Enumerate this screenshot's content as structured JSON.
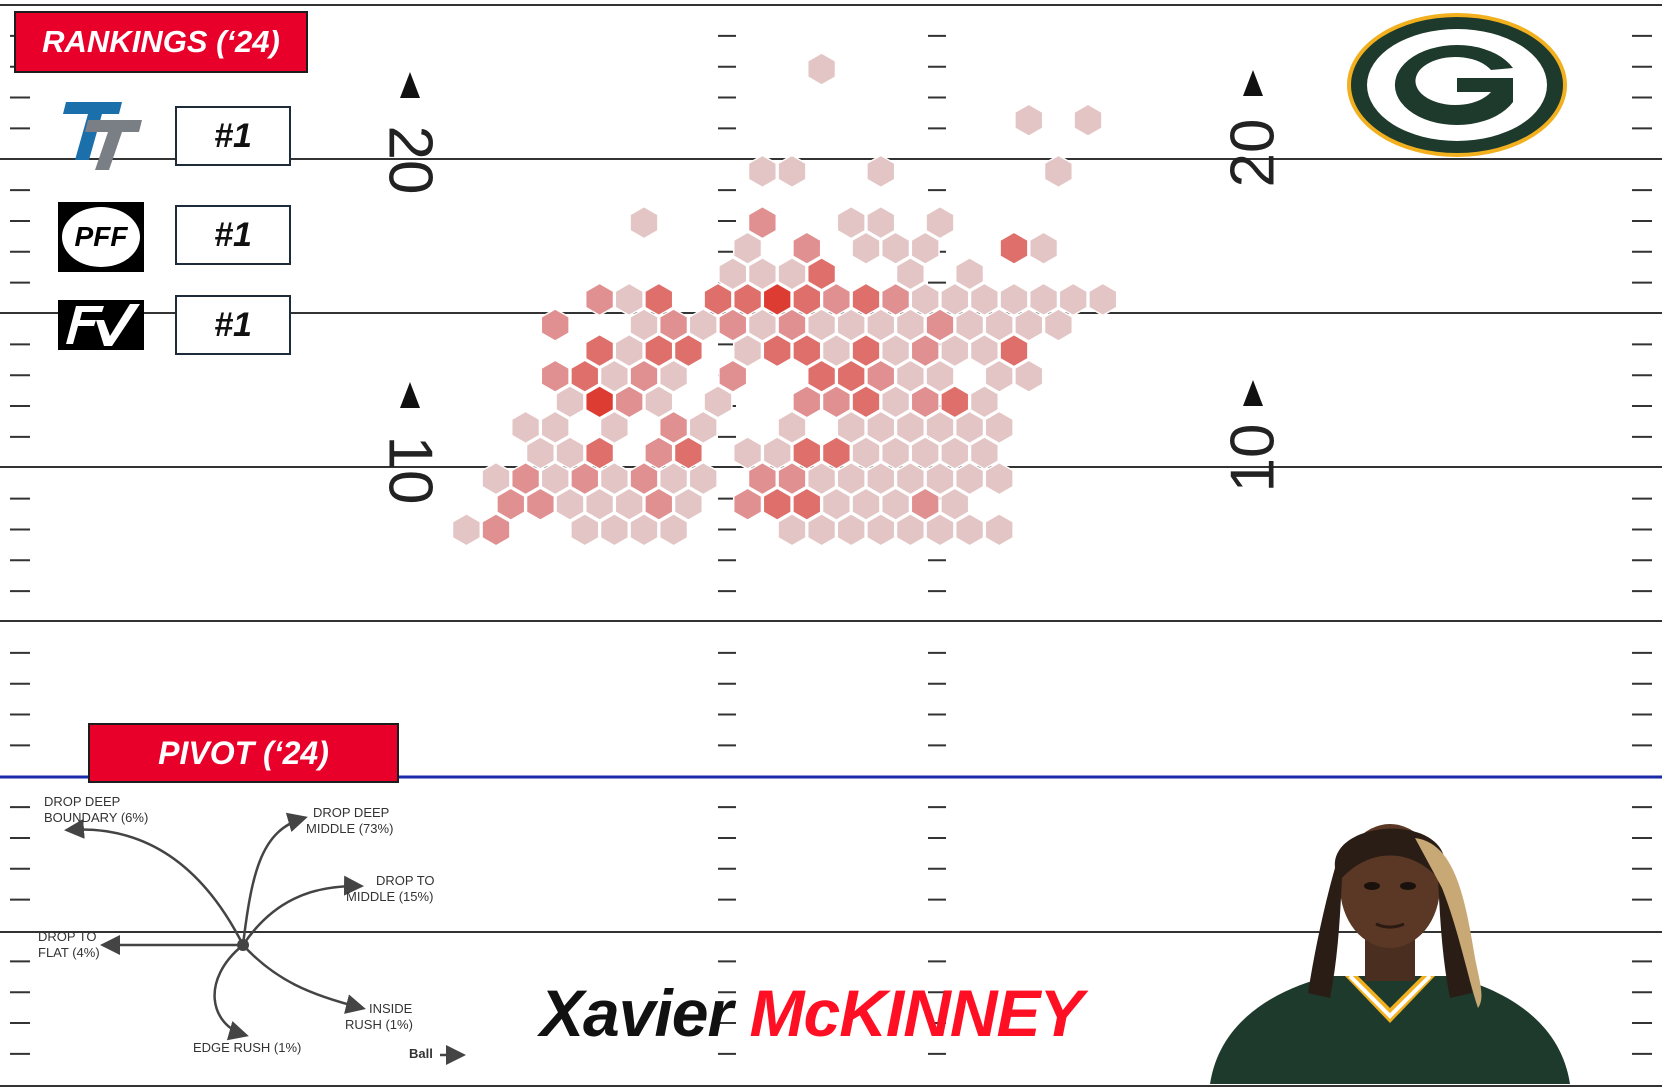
{
  "rankings": {
    "title": "RANKINGS (‘24)",
    "items": [
      {
        "source": "tt-logo-icon",
        "rank": "#1"
      },
      {
        "source": "pff-logo-icon",
        "rank": "#1"
      },
      {
        "source": "fv-logo-icon",
        "rank": "#1"
      }
    ]
  },
  "pivot": {
    "title": "PIVOT (‘24)",
    "ball_label": "Ball",
    "moves": [
      {
        "label1": "DROP DEEP",
        "label2": "BOUNDARY (6%)",
        "pct": 6
      },
      {
        "label1": "DROP DEEP",
        "label2": "MIDDLE (73%)",
        "pct": 73
      },
      {
        "label1": "DROP TO",
        "label2": "MIDDLE (15%)",
        "pct": 15
      },
      {
        "label1": "DROP TO",
        "label2": "FLAT (4%)",
        "pct": 4
      },
      {
        "label1": "INSIDE",
        "label2": "RUSH (1%)",
        "pct": 1
      },
      {
        "label1": "EDGE RUSH (1%)",
        "label2": "",
        "pct": 1
      }
    ]
  },
  "player": {
    "first_name": "Xavier",
    "last_name": "McKINNEY"
  },
  "field": {
    "yard_numbers": [
      "20",
      "10"
    ]
  },
  "colors": {
    "accent": "#e8002a",
    "name_red": "#ff0f23",
    "hex_light": "#e3c5c5",
    "hex_mid": "#e09090",
    "hex_dark": "#dd3c32",
    "packers_green": "#1e3a2c",
    "packers_gold": "#f2b01e",
    "los_blue": "#1a2aa8"
  },
  "chart_data": {
    "type": "heatmap",
    "title": "",
    "xlabel": "",
    "ylabel": "",
    "description_units": "field yards past line of scrimmage",
    "ylim": [
      0,
      25
    ],
    "yticks": [
      10,
      20
    ],
    "cells": [
      {
        "c": 16,
        "r": 0,
        "v": 1
      },
      {
        "c": 23,
        "r": 2,
        "v": 1
      },
      {
        "c": 25,
        "r": 2,
        "v": 1
      },
      {
        "c": 14,
        "r": 4,
        "v": 1
      },
      {
        "c": 15,
        "r": 4,
        "v": 1
      },
      {
        "c": 18,
        "r": 4,
        "v": 1
      },
      {
        "c": 24,
        "r": 4,
        "v": 1
      },
      {
        "c": 10,
        "r": 6,
        "v": 1
      },
      {
        "c": 14,
        "r": 6,
        "v": 2
      },
      {
        "c": 17,
        "r": 6,
        "v": 1
      },
      {
        "c": 18,
        "r": 6,
        "v": 1
      },
      {
        "c": 20,
        "r": 6,
        "v": 1
      },
      {
        "c": 13,
        "r": 7,
        "v": 1
      },
      {
        "c": 15,
        "r": 7,
        "v": 2
      },
      {
        "c": 17,
        "r": 7,
        "v": 1
      },
      {
        "c": 18,
        "r": 7,
        "v": 1
      },
      {
        "c": 19,
        "r": 7,
        "v": 1
      },
      {
        "c": 22,
        "r": 7,
        "v": 3
      },
      {
        "c": 23,
        "r": 7,
        "v": 1
      },
      {
        "c": 13,
        "r": 8,
        "v": 1
      },
      {
        "c": 14,
        "r": 8,
        "v": 1
      },
      {
        "c": 15,
        "r": 8,
        "v": 1
      },
      {
        "c": 16,
        "r": 8,
        "v": 3
      },
      {
        "c": 19,
        "r": 8,
        "v": 1
      },
      {
        "c": 21,
        "r": 8,
        "v": 1
      },
      {
        "c": 8,
        "r": 9,
        "v": 2
      },
      {
        "c": 9,
        "r": 9,
        "v": 1
      },
      {
        "c": 10,
        "r": 9,
        "v": 3
      },
      {
        "c": 12,
        "r": 9,
        "v": 3
      },
      {
        "c": 13,
        "r": 9,
        "v": 3
      },
      {
        "c": 14,
        "r": 9,
        "v": 4
      },
      {
        "c": 15,
        "r": 9,
        "v": 3
      },
      {
        "c": 16,
        "r": 9,
        "v": 2
      },
      {
        "c": 17,
        "r": 9,
        "v": 3
      },
      {
        "c": 18,
        "r": 9,
        "v": 2
      },
      {
        "c": 19,
        "r": 9,
        "v": 1
      },
      {
        "c": 20,
        "r": 9,
        "v": 1
      },
      {
        "c": 21,
        "r": 9,
        "v": 1
      },
      {
        "c": 22,
        "r": 9,
        "v": 1
      },
      {
        "c": 23,
        "r": 9,
        "v": 1
      },
      {
        "c": 24,
        "r": 9,
        "v": 1
      },
      {
        "c": 25,
        "r": 9,
        "v": 1
      },
      {
        "c": 7,
        "r": 10,
        "v": 2
      },
      {
        "c": 10,
        "r": 10,
        "v": 1
      },
      {
        "c": 11,
        "r": 10,
        "v": 2
      },
      {
        "c": 12,
        "r": 10,
        "v": 1
      },
      {
        "c": 13,
        "r": 10,
        "v": 2
      },
      {
        "c": 14,
        "r": 10,
        "v": 1
      },
      {
        "c": 15,
        "r": 10,
        "v": 2
      },
      {
        "c": 16,
        "r": 10,
        "v": 1
      },
      {
        "c": 17,
        "r": 10,
        "v": 1
      },
      {
        "c": 18,
        "r": 10,
        "v": 1
      },
      {
        "c": 19,
        "r": 10,
        "v": 1
      },
      {
        "c": 20,
        "r": 10,
        "v": 2
      },
      {
        "c": 21,
        "r": 10,
        "v": 1
      },
      {
        "c": 22,
        "r": 10,
        "v": 1
      },
      {
        "c": 23,
        "r": 10,
        "v": 1
      },
      {
        "c": 24,
        "r": 10,
        "v": 1
      },
      {
        "c": 8,
        "r": 11,
        "v": 3
      },
      {
        "c": 9,
        "r": 11,
        "v": 1
      },
      {
        "c": 10,
        "r": 11,
        "v": 3
      },
      {
        "c": 11,
        "r": 11,
        "v": 3
      },
      {
        "c": 13,
        "r": 11,
        "v": 1
      },
      {
        "c": 14,
        "r": 11,
        "v": 3
      },
      {
        "c": 15,
        "r": 11,
        "v": 3
      },
      {
        "c": 16,
        "r": 11,
        "v": 1
      },
      {
        "c": 17,
        "r": 11,
        "v": 3
      },
      {
        "c": 18,
        "r": 11,
        "v": 1
      },
      {
        "c": 19,
        "r": 11,
        "v": 2
      },
      {
        "c": 20,
        "r": 11,
        "v": 1
      },
      {
        "c": 21,
        "r": 11,
        "v": 1
      },
      {
        "c": 22,
        "r": 11,
        "v": 3
      },
      {
        "c": 7,
        "r": 12,
        "v": 2
      },
      {
        "c": 8,
        "r": 12,
        "v": 3
      },
      {
        "c": 9,
        "r": 12,
        "v": 1
      },
      {
        "c": 10,
        "r": 12,
        "v": 2
      },
      {
        "c": 11,
        "r": 12,
        "v": 1
      },
      {
        "c": 13,
        "r": 12,
        "v": 2
      },
      {
        "c": 16,
        "r": 12,
        "v": 3
      },
      {
        "c": 17,
        "r": 12,
        "v": 3
      },
      {
        "c": 18,
        "r": 12,
        "v": 2
      },
      {
        "c": 19,
        "r": 12,
        "v": 1
      },
      {
        "c": 20,
        "r": 12,
        "v": 1
      },
      {
        "c": 22,
        "r": 12,
        "v": 1
      },
      {
        "c": 23,
        "r": 12,
        "v": 1
      },
      {
        "c": 7,
        "r": 13,
        "v": 1
      },
      {
        "c": 8,
        "r": 13,
        "v": 4
      },
      {
        "c": 9,
        "r": 13,
        "v": 2
      },
      {
        "c": 10,
        "r": 13,
        "v": 1
      },
      {
        "c": 12,
        "r": 13,
        "v": 1
      },
      {
        "c": 15,
        "r": 13,
        "v": 2
      },
      {
        "c": 16,
        "r": 13,
        "v": 2
      },
      {
        "c": 17,
        "r": 13,
        "v": 3
      },
      {
        "c": 18,
        "r": 13,
        "v": 1
      },
      {
        "c": 19,
        "r": 13,
        "v": 2
      },
      {
        "c": 20,
        "r": 13,
        "v": 3
      },
      {
        "c": 21,
        "r": 13,
        "v": 1
      },
      {
        "c": 6,
        "r": 14,
        "v": 1
      },
      {
        "c": 7,
        "r": 14,
        "v": 1
      },
      {
        "c": 9,
        "r": 14,
        "v": 1
      },
      {
        "c": 11,
        "r": 14,
        "v": 2
      },
      {
        "c": 12,
        "r": 14,
        "v": 1
      },
      {
        "c": 15,
        "r": 14,
        "v": 1
      },
      {
        "c": 17,
        "r": 14,
        "v": 1
      },
      {
        "c": 18,
        "r": 14,
        "v": 1
      },
      {
        "c": 19,
        "r": 14,
        "v": 1
      },
      {
        "c": 20,
        "r": 14,
        "v": 1
      },
      {
        "c": 21,
        "r": 14,
        "v": 1
      },
      {
        "c": 22,
        "r": 14,
        "v": 1
      },
      {
        "c": 6,
        "r": 15,
        "v": 1
      },
      {
        "c": 7,
        "r": 15,
        "v": 1
      },
      {
        "c": 8,
        "r": 15,
        "v": 3
      },
      {
        "c": 10,
        "r": 15,
        "v": 2
      },
      {
        "c": 11,
        "r": 15,
        "v": 3
      },
      {
        "c": 13,
        "r": 15,
        "v": 1
      },
      {
        "c": 14,
        "r": 15,
        "v": 1
      },
      {
        "c": 15,
        "r": 15,
        "v": 3
      },
      {
        "c": 16,
        "r": 15,
        "v": 3
      },
      {
        "c": 17,
        "r": 15,
        "v": 1
      },
      {
        "c": 18,
        "r": 15,
        "v": 1
      },
      {
        "c": 19,
        "r": 15,
        "v": 1
      },
      {
        "c": 20,
        "r": 15,
        "v": 1
      },
      {
        "c": 21,
        "r": 15,
        "v": 1
      },
      {
        "c": 5,
        "r": 16,
        "v": 1
      },
      {
        "c": 6,
        "r": 16,
        "v": 2
      },
      {
        "c": 7,
        "r": 16,
        "v": 1
      },
      {
        "c": 8,
        "r": 16,
        "v": 2
      },
      {
        "c": 9,
        "r": 16,
        "v": 1
      },
      {
        "c": 10,
        "r": 16,
        "v": 2
      },
      {
        "c": 11,
        "r": 16,
        "v": 1
      },
      {
        "c": 12,
        "r": 16,
        "v": 1
      },
      {
        "c": 14,
        "r": 16,
        "v": 2
      },
      {
        "c": 15,
        "r": 16,
        "v": 2
      },
      {
        "c": 16,
        "r": 16,
        "v": 1
      },
      {
        "c": 17,
        "r": 16,
        "v": 1
      },
      {
        "c": 18,
        "r": 16,
        "v": 1
      },
      {
        "c": 19,
        "r": 16,
        "v": 1
      },
      {
        "c": 20,
        "r": 16,
        "v": 1
      },
      {
        "c": 21,
        "r": 16,
        "v": 1
      },
      {
        "c": 22,
        "r": 16,
        "v": 1
      },
      {
        "c": 5,
        "r": 17,
        "v": 2
      },
      {
        "c": 6,
        "r": 17,
        "v": 2
      },
      {
        "c": 7,
        "r": 17,
        "v": 1
      },
      {
        "c": 8,
        "r": 17,
        "v": 1
      },
      {
        "c": 9,
        "r": 17,
        "v": 1
      },
      {
        "c": 10,
        "r": 17,
        "v": 2
      },
      {
        "c": 11,
        "r": 17,
        "v": 1
      },
      {
        "c": 13,
        "r": 17,
        "v": 2
      },
      {
        "c": 14,
        "r": 17,
        "v": 3
      },
      {
        "c": 15,
        "r": 17,
        "v": 3
      },
      {
        "c": 16,
        "r": 17,
        "v": 1
      },
      {
        "c": 17,
        "r": 17,
        "v": 1
      },
      {
        "c": 18,
        "r": 17,
        "v": 1
      },
      {
        "c": 19,
        "r": 17,
        "v": 2
      },
      {
        "c": 20,
        "r": 17,
        "v": 1
      },
      {
        "c": 4,
        "r": 18,
        "v": 1
      },
      {
        "c": 5,
        "r": 18,
        "v": 2
      },
      {
        "c": 8,
        "r": 18,
        "v": 1
      },
      {
        "c": 9,
        "r": 18,
        "v": 1
      },
      {
        "c": 10,
        "r": 18,
        "v": 1
      },
      {
        "c": 11,
        "r": 18,
        "v": 1
      },
      {
        "c": 15,
        "r": 18,
        "v": 1
      },
      {
        "c": 16,
        "r": 18,
        "v": 1
      },
      {
        "c": 17,
        "r": 18,
        "v": 1
      },
      {
        "c": 18,
        "r": 18,
        "v": 1
      },
      {
        "c": 19,
        "r": 18,
        "v": 1
      },
      {
        "c": 20,
        "r": 18,
        "v": 1
      },
      {
        "c": 21,
        "r": 18,
        "v": 1
      },
      {
        "c": 22,
        "r": 18,
        "v": 1
      }
    ],
    "value_scale": {
      "1": "low",
      "2": "medium",
      "3": "high",
      "4": "highest"
    }
  }
}
